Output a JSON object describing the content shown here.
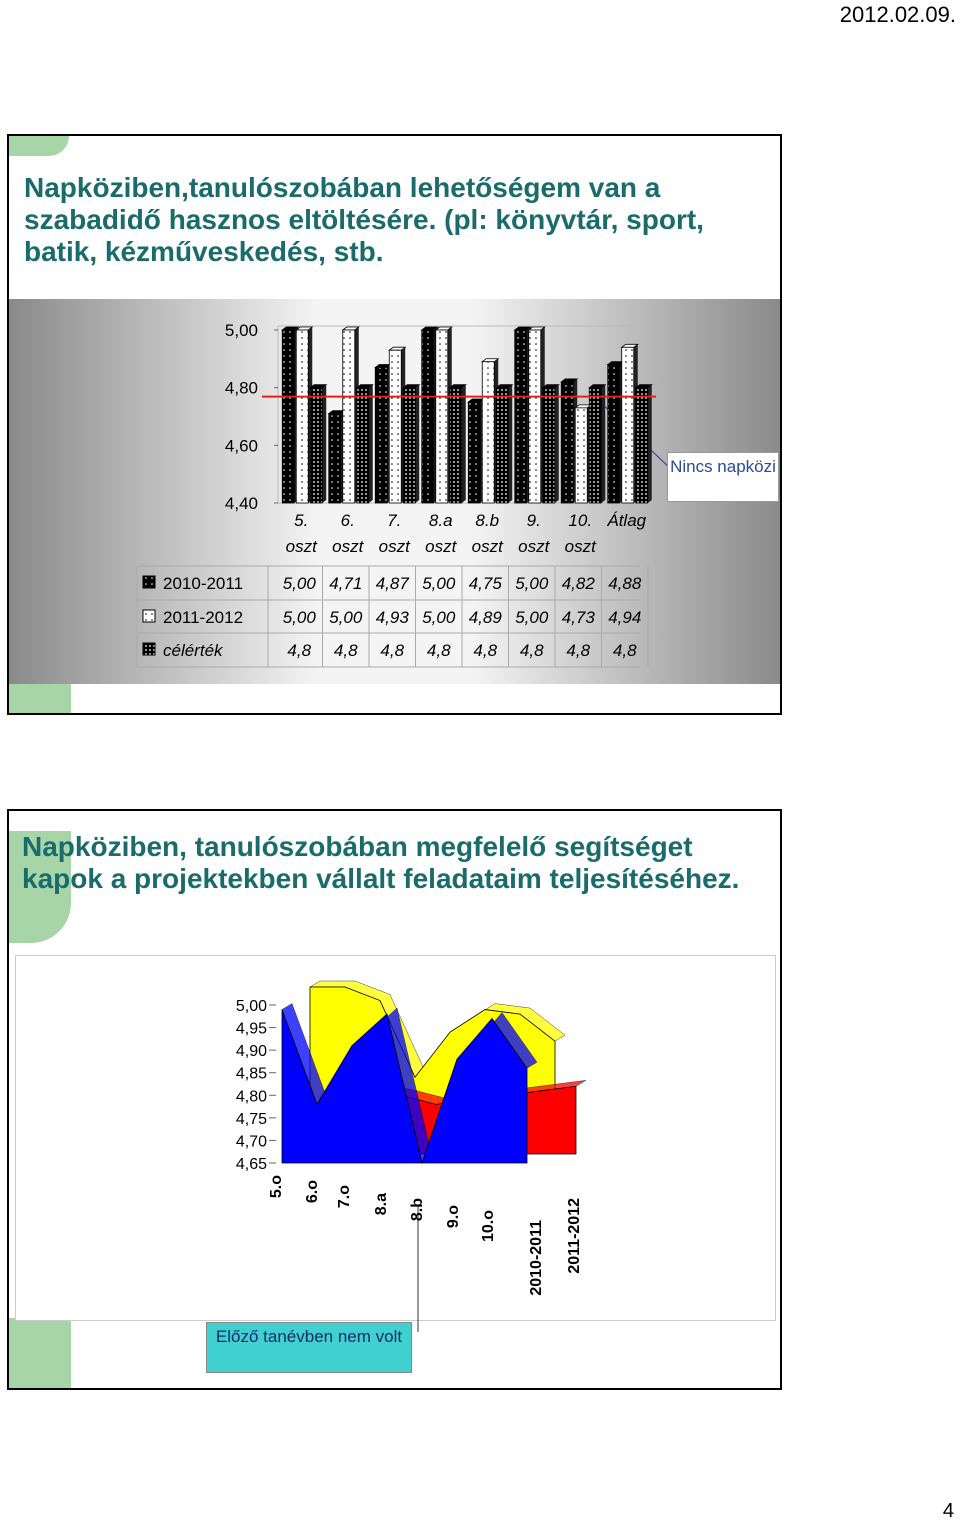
{
  "header": {
    "date": "2012.02.09."
  },
  "page_number": 4,
  "slides": [
    {
      "title": "Napköziben,tanulószobában lehetőségem van a szabadidő hasznos eltöltésére. (pl: könyvtár, sport, batik, kézműveskedés, stb.",
      "note": "Nincs napközi"
    },
    {
      "title": "Napköziben, tanulószobában megfelelő segítséget kapok a projektekben vállalt feladataim teljesítéséhez.",
      "note": "Előző tanévben nem volt"
    }
  ],
  "chart_data": [
    {
      "type": "bar",
      "categories": [
        "5. oszt",
        "6. oszt",
        "7. oszt",
        "8.a oszt",
        "8.b oszt",
        "9. oszt",
        "10. oszt",
        "Átlag"
      ],
      "series": [
        {
          "name": "2010-2011",
          "color": "#000000",
          "values": [
            5.0,
            4.71,
            4.87,
            5.0,
            4.75,
            5.0,
            4.82,
            4.88
          ],
          "value_labels": [
            "5,00",
            "4,71",
            "4,87",
            "5,00",
            "4,75",
            "5,00",
            "4,82",
            "4,88"
          ]
        },
        {
          "name": "2011-2012",
          "color": "#ffffff",
          "values": [
            5.0,
            5.0,
            4.93,
            5.0,
            4.89,
            5.0,
            4.73,
            4.94
          ],
          "value_labels": [
            "5,00",
            "5,00",
            "4,93",
            "5,00",
            "4,89",
            "5,00",
            "4,73",
            "4,94"
          ]
        },
        {
          "name": "célérték",
          "color": "#000000",
          "values": [
            4.8,
            4.8,
            4.8,
            4.8,
            4.8,
            4.8,
            4.8,
            4.8
          ],
          "value_labels": [
            "4,8",
            "4,8",
            "4,8",
            "4,8",
            "4,8",
            "4,8",
            "4,8",
            "4,8"
          ]
        }
      ],
      "ylim": [
        4.4,
        5.0
      ],
      "yticks": [
        {
          "value": 5.0,
          "label": "5,00"
        },
        {
          "value": 4.8,
          "label": "4,80"
        },
        {
          "value": 4.6,
          "label": "4,60"
        },
        {
          "value": 4.4,
          "label": "4,40"
        }
      ],
      "grid": false
    },
    {
      "type": "area3d",
      "categories": [
        "5.o",
        "6.o",
        "7.o",
        "8.a",
        "8.b",
        "9.o",
        "10.o",
        "2010-2011",
        "2011-2012"
      ],
      "series": [
        {
          "color": "#ffff00",
          "values": [
            5.0,
            5.0,
            4.97,
            4.8,
            4.9,
            4.95,
            4.94,
            4.88,
            null
          ]
        },
        {
          "color": "#ff0000",
          "values": [
            null,
            4.8,
            4.79,
            4.78,
            4.76,
            4.77,
            4.78,
            4.79,
            4.8
          ]
        },
        {
          "color": "#0000ff",
          "values": [
            4.99,
            4.78,
            4.91,
            4.98,
            4.65,
            4.88,
            4.97,
            4.86,
            null
          ]
        }
      ],
      "ylim": [
        4.65,
        5.0
      ],
      "yticks": [
        {
          "value": 5.0,
          "label": "5,00"
        },
        {
          "value": 4.95,
          "label": "4,95"
        },
        {
          "value": 4.9,
          "label": "4,90"
        },
        {
          "value": 4.85,
          "label": "4,85"
        },
        {
          "value": 4.8,
          "label": "4,80"
        },
        {
          "value": 4.75,
          "label": "4,75"
        },
        {
          "value": 4.7,
          "label": "4,70"
        },
        {
          "value": 4.65,
          "label": "4,65"
        }
      ]
    }
  ]
}
